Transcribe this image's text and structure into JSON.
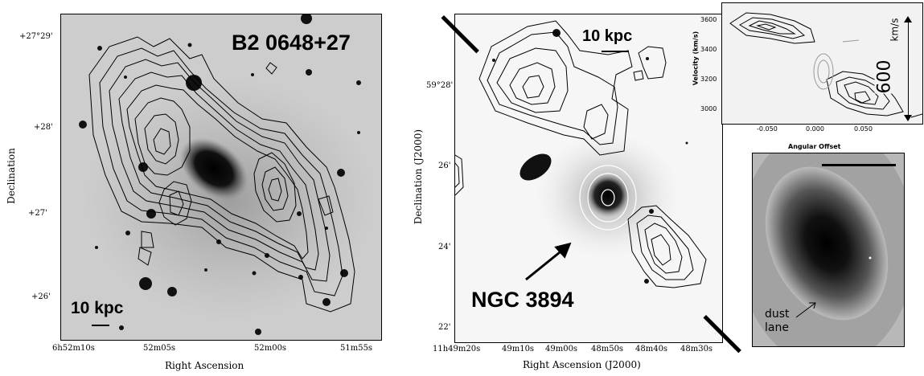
{
  "panel_a": {
    "source_label": "B2 0648+27",
    "scale_label": "10 kpc",
    "dec_title": "Declination",
    "ra_title": "Right Ascension",
    "dec_ticks": [
      "+27°29'",
      "+28'",
      "+27'",
      "+26'"
    ],
    "ra_ticks": [
      "6h52m10s",
      "52m05s",
      "52m00s",
      "51m55s"
    ]
  },
  "panel_b": {
    "source_label": "NGC 3894",
    "scale_label": "10 kpc",
    "dec_title": "Declination (J2000)",
    "ra_title": "Right Ascension (J2000)",
    "dec_ticks": [
      "59°28'",
      "26'",
      "24'",
      "22'"
    ],
    "ra_ticks": [
      "11h49m20s",
      "49m10s",
      "49m00s",
      "48m50s",
      "48m40s",
      "48m30s"
    ]
  },
  "panel_c": {
    "ylabel": "Velocity (km/s)",
    "xlabel": "Angular Offset",
    "y_ticks": [
      "3600",
      "3400",
      "3200",
      "3000"
    ],
    "x_ticks": [
      "-0.050",
      "0.000",
      "0.050"
    ],
    "span_value": "600",
    "span_unit": "km/s"
  },
  "panel_d": {
    "annotation_line1": "dust",
    "annotation_line2": "lane"
  }
}
